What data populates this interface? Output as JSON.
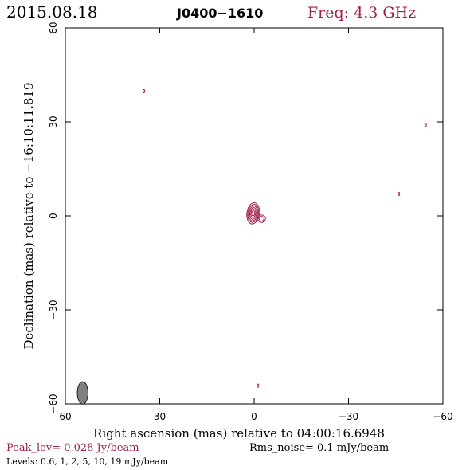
{
  "header": {
    "date": "2015.08.18",
    "source": "J0400−1610",
    "freq": "Freq: 4.3 GHz"
  },
  "footer": {
    "peak": "Peak_lev=  0.028 Jy/beam",
    "rms": "Rms_noise=   0.1 mJy/beam",
    "levels": "Levels: 0.6,    1,    2,    5,   10,   19  mJy/beam"
  },
  "chart_data": {
    "type": "contour",
    "title": "J0400−1610",
    "xlabel": "Right ascension (mas) relative to 04:00:16.6948",
    "ylabel": "Declination (mas) relative to −16:10:11.819",
    "xlim": [
      60,
      -60
    ],
    "ylim": [
      -60,
      60
    ],
    "xticks": [
      60,
      30,
      0,
      -30,
      -60
    ],
    "yticks": [
      -60,
      -30,
      0,
      30,
      60
    ],
    "xtick_labels": [
      "60",
      "30",
      "0",
      "−30",
      "−60"
    ],
    "ytick_labels": [
      "−60",
      "−30",
      "0",
      "30",
      "60"
    ],
    "contour_levels_mJy": [
      0.6,
      1,
      2,
      5,
      10,
      19
    ],
    "contour_color": "#a0204a",
    "components": [
      {
        "x": 0.3,
        "y": 0.8,
        "rx": 2.0,
        "ry": 3.4,
        "angle": 8,
        "levels": 6
      },
      {
        "x": -2.4,
        "y": -0.9,
        "rx": 1.2,
        "ry": 1.2,
        "angle": 0,
        "levels": 2
      }
    ],
    "noise_blobs": [
      {
        "x": 35.0,
        "y": 39.8
      },
      {
        "x": -54.5,
        "y": 29.0
      },
      {
        "x": -46.0,
        "y": 7.0
      },
      {
        "x": -1.2,
        "y": -54.2
      }
    ],
    "beam": {
      "x": 54.5,
      "y": -56.5,
      "major": 3.6,
      "minor": 1.7,
      "angle": 0,
      "fill": "#808080"
    }
  }
}
